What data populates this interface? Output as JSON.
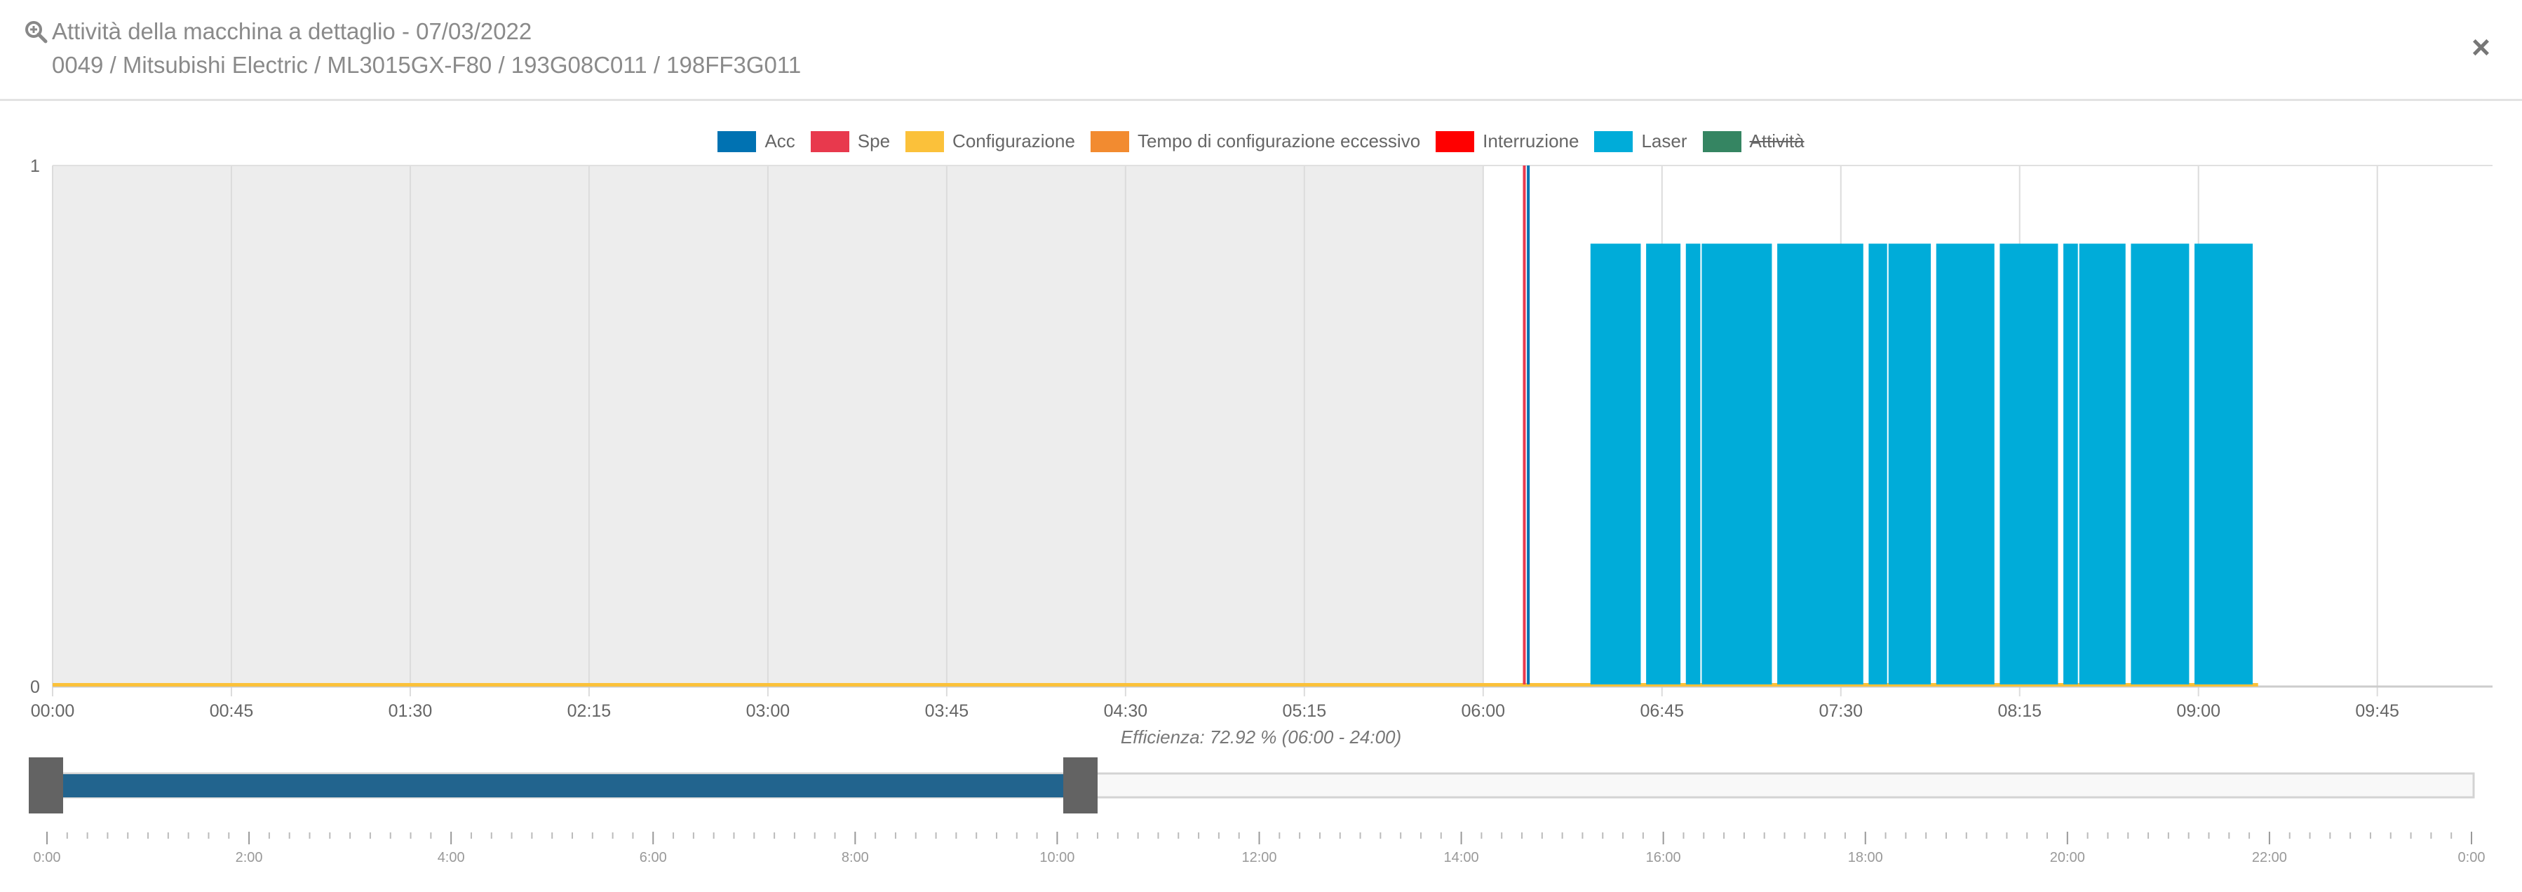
{
  "header": {
    "title": "Attività della macchina a dettaglio - 07/03/2022",
    "subtitle": "0049 / Mitsubishi Electric / ML3015GX-F80 / 193G08C011 / 198FF3G011",
    "title_icon": "zoom-in-icon",
    "close_label": "×"
  },
  "legend": [
    {
      "label": "Acc",
      "color": "#0072b2",
      "hidden": false
    },
    {
      "label": "Spe",
      "color": "#e8394d",
      "hidden": false
    },
    {
      "label": "Configurazione",
      "color": "#fbc13a",
      "hidden": false
    },
    {
      "label": "Tempo di configurazione eccessivo",
      "color": "#f28b30",
      "hidden": false
    },
    {
      "label": "Interruzione",
      "color": "#ff0000",
      "hidden": false
    },
    {
      "label": "Laser",
      "color": "#00acd9",
      "hidden": false
    },
    {
      "label": "Attività",
      "color": "#358562",
      "hidden": true
    }
  ],
  "efficiency": "Efficienza: 72.92 % (06:00 - 24:00)",
  "chart_data": {
    "type": "bar",
    "x_range": [
      "00:00",
      "10:14"
    ],
    "y_range": [
      0,
      1
    ],
    "y_ticks": [
      "0",
      "1"
    ],
    "x_ticks": [
      "00:00",
      "00:45",
      "01:30",
      "02:15",
      "03:00",
      "03:45",
      "04:30",
      "05:15",
      "06:00",
      "06:45",
      "07:30",
      "08:15",
      "09:00",
      "09:45"
    ],
    "grid": true,
    "off_shift_shading": {
      "from": "00:00",
      "to": "06:00",
      "color": "#ededed"
    },
    "series": [
      {
        "name": "Configurazione",
        "color": "#fbc13a",
        "value": 0,
        "intervals": [
          [
            "00:00",
            "09:15"
          ]
        ]
      },
      {
        "name": "Spe",
        "color": "#e8394d",
        "value": 1,
        "intervals": [
          [
            "06:10",
            "06:11"
          ]
        ]
      },
      {
        "name": "Acc",
        "color": "#0072b2",
        "value": 1,
        "intervals": [
          [
            "06:11",
            "06:11"
          ]
        ]
      },
      {
        "name": "Laser",
        "color": "#00acd9",
        "value": 0.85,
        "intervals": [
          [
            "06:27",
            "06:40"
          ],
          [
            "06:41",
            "06:50"
          ],
          [
            "06:51",
            "06:55"
          ],
          [
            "06:55",
            "07:13"
          ],
          [
            "07:14",
            "07:36"
          ],
          [
            "07:37",
            "07:42"
          ],
          [
            "07:42",
            "07:53"
          ],
          [
            "07:54",
            "08:09"
          ],
          [
            "08:10",
            "08:25"
          ],
          [
            "08:26",
            "08:30"
          ],
          [
            "08:30",
            "08:42"
          ],
          [
            "08:43",
            "08:58"
          ],
          [
            "08:59",
            "09:14"
          ]
        ]
      }
    ]
  },
  "range_slider": {
    "from": "0:00",
    "to": "10:14",
    "fill_color": "#22648e",
    "ticks": [
      "0:00",
      "2:00",
      "4:00",
      "6:00",
      "8:00",
      "10:00",
      "12:00",
      "14:00",
      "16:00",
      "18:00",
      "20:00",
      "22:00",
      "0:00"
    ]
  }
}
